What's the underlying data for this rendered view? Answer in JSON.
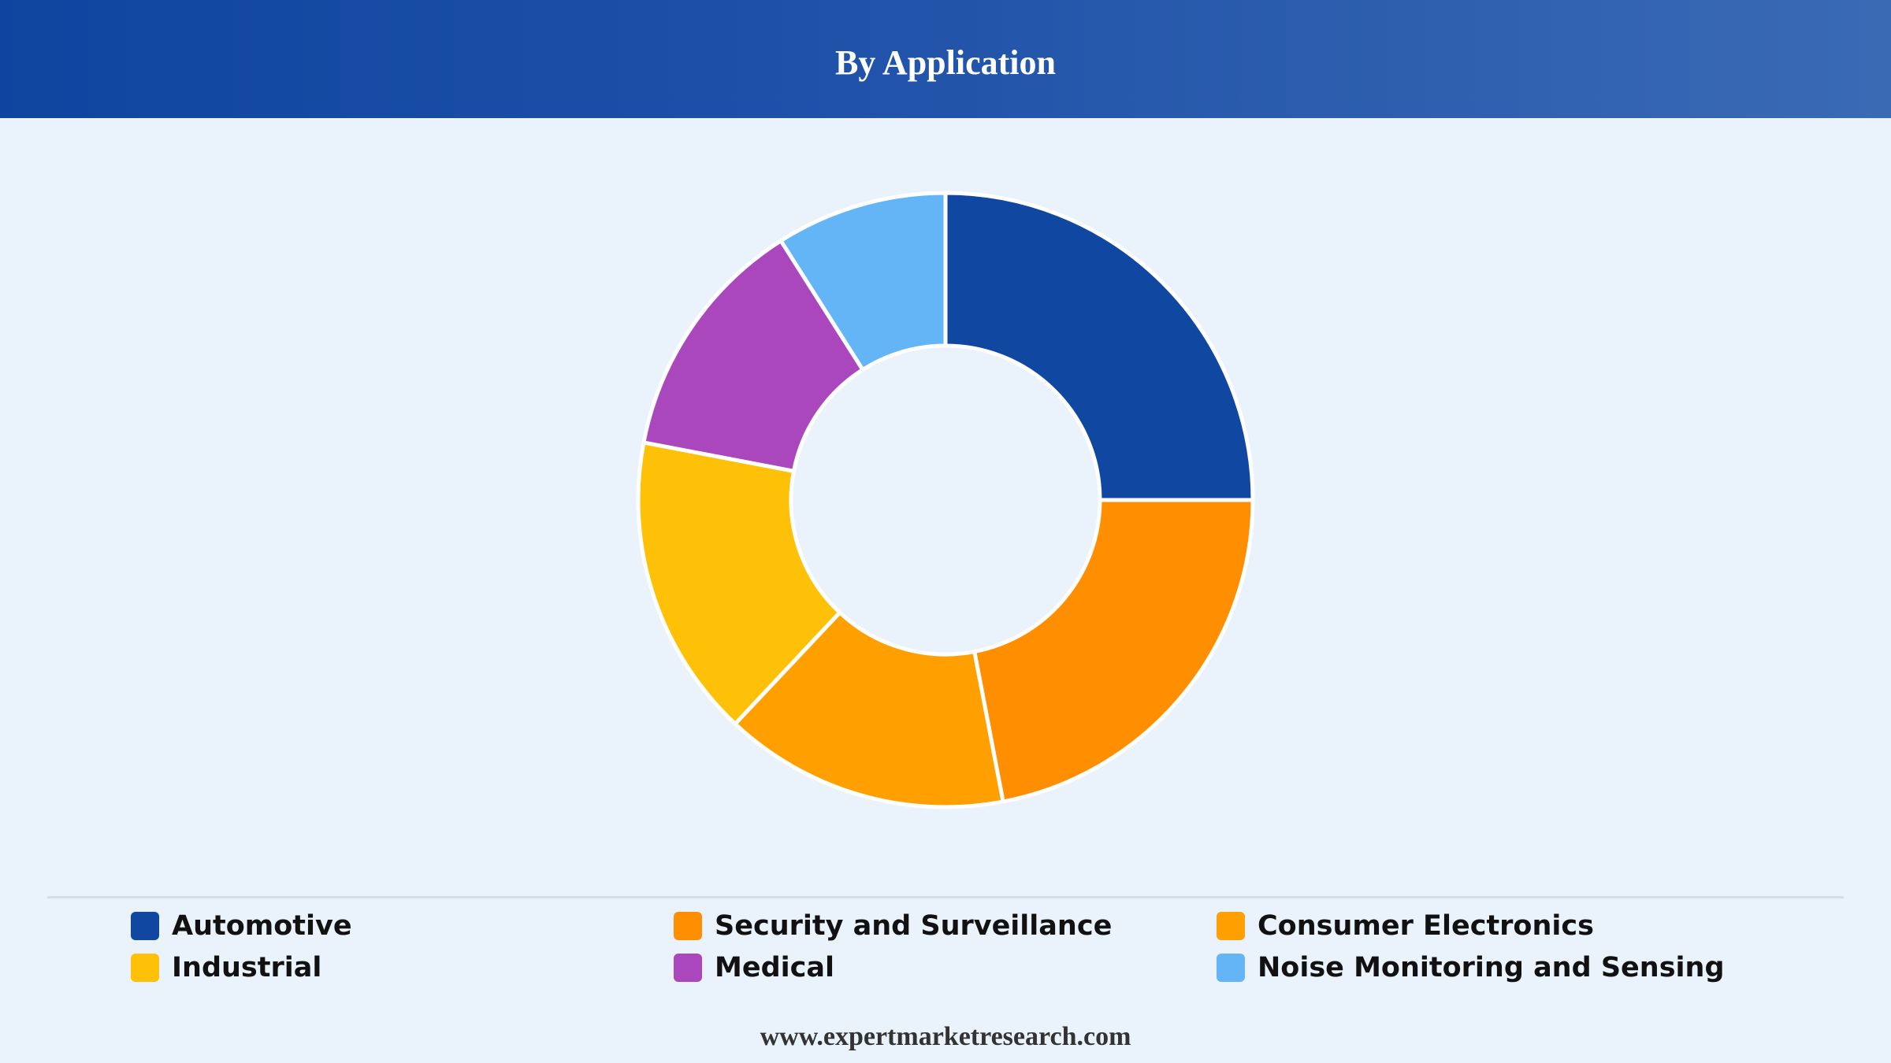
{
  "header": {
    "title": "By Application"
  },
  "chart_data": {
    "type": "pie",
    "donut": true,
    "title": "By Application",
    "categories": [
      "Automotive",
      "Security and Surveillance",
      "Consumer Electronics",
      "Industrial",
      "Medical",
      "Noise Monitoring and Sensing"
    ],
    "values": [
      25,
      22,
      15,
      16,
      13,
      9
    ],
    "colors": [
      "#0f47a1",
      "#ff8f00",
      "#ffa000",
      "#ffc107",
      "#ab47bc",
      "#64b5f6"
    ],
    "legend_position": "bottom",
    "grid": false
  },
  "legend": {
    "items": [
      {
        "label": "Automotive",
        "color": "#0f47a1"
      },
      {
        "label": "Security and Surveillance",
        "color": "#ff8f00"
      },
      {
        "label": "Consumer Electronics",
        "color": "#ffa000"
      },
      {
        "label": "Industrial",
        "color": "#ffc107"
      },
      {
        "label": "Medical",
        "color": "#ab47bc"
      },
      {
        "label": "Noise Monitoring and Sensing",
        "color": "#64b5f6"
      }
    ]
  },
  "footer": {
    "website": "www.expertmarketresearch.com"
  }
}
